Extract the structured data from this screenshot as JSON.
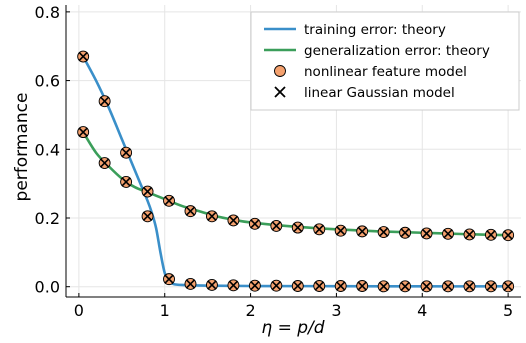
{
  "chart_data": {
    "type": "line",
    "xlabel": "η = p/d",
    "ylabel": "performance",
    "xlim": [
      -0.15,
      5.15
    ],
    "ylim": [
      -0.03,
      0.82
    ],
    "xticks": [
      0,
      1,
      2,
      3,
      4,
      5
    ],
    "xtick_labels": [
      "0",
      "1",
      "2",
      "3",
      "4",
      "5"
    ],
    "yticks": [
      0.0,
      0.2,
      0.4,
      0.6,
      0.8
    ],
    "ytick_labels": [
      "0.0",
      "0.2",
      "0.4",
      "0.6",
      "0.8"
    ],
    "grid": true,
    "legend_position": "top-right",
    "colors": {
      "training": "#3a8fc9",
      "generalization": "#3b9e5a",
      "nonlinear_fill": "#f4a16e",
      "marker_edge": "#000000"
    },
    "series": [
      {
        "name": "training error: theory",
        "kind": "line",
        "x": [
          0.05,
          0.2,
          0.35,
          0.5,
          0.6,
          0.7,
          0.8,
          0.85,
          0.9,
          0.95,
          1.0,
          1.05,
          1.1,
          1.2,
          1.5,
          2.0,
          3.0,
          4.0,
          5.0
        ],
        "y": [
          0.67,
          0.6,
          0.52,
          0.43,
          0.37,
          0.31,
          0.25,
          0.215,
          0.17,
          0.1,
          0.04,
          0.015,
          0.008,
          0.005,
          0.003,
          0.002,
          0.0015,
          0.001,
          0.001
        ]
      },
      {
        "name": "generalization error: theory",
        "kind": "line",
        "x": [
          0.05,
          0.2,
          0.35,
          0.5,
          0.65,
          0.8,
          0.9,
          1.0,
          1.2,
          1.4,
          1.6,
          1.8,
          2.0,
          2.5,
          3.0,
          3.5,
          4.0,
          4.5,
          5.0
        ],
        "y": [
          0.45,
          0.39,
          0.35,
          0.315,
          0.29,
          0.275,
          0.265,
          0.255,
          0.235,
          0.22,
          0.205,
          0.195,
          0.187,
          0.175,
          0.167,
          0.161,
          0.157,
          0.153,
          0.15
        ]
      },
      {
        "name": "nonlinear feature model",
        "kind": "points",
        "x": [
          0.05,
          0.3,
          0.55,
          0.8,
          1.05,
          1.3,
          1.55,
          1.8,
          2.05,
          2.3,
          2.55,
          2.8,
          3.05,
          3.3,
          3.55,
          3.8,
          4.05,
          4.3,
          4.55,
          4.8,
          5.0
        ],
        "y_train": [
          0.67,
          0.54,
          0.39,
          0.205,
          0.022,
          0.008,
          0.005,
          0.004,
          0.003,
          0.003,
          0.002,
          0.002,
          0.002,
          0.002,
          0.001,
          0.001,
          0.001,
          0.001,
          0.001,
          0.001,
          0.001
        ],
        "y_gen": [
          0.45,
          0.36,
          0.305,
          0.277,
          0.25,
          0.22,
          0.205,
          0.193,
          0.183,
          0.177,
          0.172,
          0.167,
          0.163,
          0.161,
          0.159,
          0.157,
          0.155,
          0.154,
          0.152,
          0.151,
          0.15
        ]
      },
      {
        "name": "linear Gaussian model",
        "kind": "points",
        "x": [
          0.05,
          0.3,
          0.55,
          0.8,
          1.05,
          1.3,
          1.55,
          1.8,
          2.05,
          2.3,
          2.55,
          2.8,
          3.05,
          3.3,
          3.55,
          3.8,
          4.05,
          4.3,
          4.55,
          4.8,
          5.0
        ],
        "y_train": [
          0.67,
          0.54,
          0.39,
          0.205,
          0.022,
          0.008,
          0.005,
          0.004,
          0.003,
          0.003,
          0.002,
          0.002,
          0.002,
          0.002,
          0.001,
          0.001,
          0.001,
          0.001,
          0.001,
          0.001,
          0.001
        ],
        "y_gen": [
          0.45,
          0.36,
          0.305,
          0.277,
          0.25,
          0.22,
          0.205,
          0.193,
          0.183,
          0.177,
          0.172,
          0.167,
          0.163,
          0.161,
          0.159,
          0.157,
          0.155,
          0.154,
          0.152,
          0.151,
          0.15
        ]
      }
    ]
  }
}
